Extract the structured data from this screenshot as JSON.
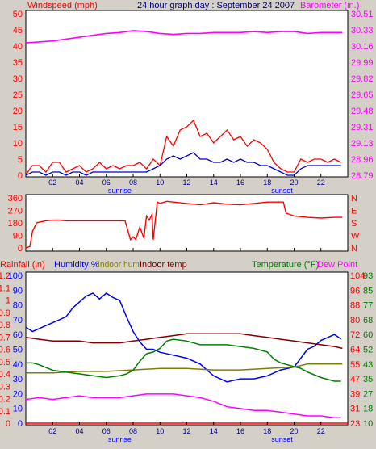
{
  "header": {
    "left_title": "Windspeed (mph)",
    "center_title": "24 hour graph day : September 24 2007",
    "right_title": "Barometer (in.)"
  },
  "colors": {
    "background": "#d4d0c8",
    "plot_bg": "#ffffff",
    "wind_gust": "#ff0000",
    "wind_avg": "#0000cc",
    "barometer": "#ff00ff",
    "direction": "#ff0000",
    "humidity": "#0000ff",
    "indoor_hum": "#808000",
    "indoor_temp": "#800000",
    "temperature": "#008000",
    "dew_point": "#ff00ff",
    "rainfall": "#ff0000"
  },
  "x_axis": {
    "ticks": [
      "02",
      "04",
      "06",
      "08",
      "10",
      "12",
      "14",
      "16",
      "18",
      "20",
      "22"
    ],
    "sunrise_label": "sunrise",
    "sunset_label": "sunset",
    "sunrise_hour": 7.0,
    "sunset_hour": 19.1
  },
  "chart_data": [
    {
      "type": "line",
      "panel": "wind",
      "x_range": [
        0,
        24
      ],
      "left_axis": {
        "label": "Windspeed (mph)",
        "ylim": [
          0,
          50
        ],
        "ticks": [
          "0",
          "5",
          "10",
          "15",
          "20",
          "25",
          "30",
          "35",
          "40",
          "45",
          "50"
        ]
      },
      "right_axis": {
        "label": "Barometer (in.)",
        "ylim": [
          28.79,
          30.51
        ],
        "ticks": [
          "28.79",
          "28.96",
          "29.13",
          "29.31",
          "29.48",
          "29.65",
          "29.82",
          "29.99",
          "30.16",
          "30.33",
          "30.51"
        ]
      },
      "series": [
        {
          "name": "Windspeed (mph)",
          "axis": "left",
          "color": "#ff0000",
          "x": [
            0,
            0.3,
            0.5,
            1.0,
            1.5,
            2.0,
            2.5,
            3.0,
            3.5,
            4.0,
            4.5,
            5.0,
            5.5,
            6.0,
            6.5,
            7.0,
            7.5,
            8.0,
            8.5,
            9.0,
            9.5,
            10.0,
            10.5,
            11.0,
            11.5,
            12.0,
            12.5,
            13.0,
            13.5,
            14.0,
            14.5,
            15.0,
            15.5,
            16.0,
            16.5,
            17.0,
            17.5,
            18.0,
            18.5,
            19.0,
            19.5,
            20.0,
            20.5,
            21.0,
            21.5,
            22.0,
            22.5,
            23.0,
            23.5
          ],
          "y": [
            0,
            2,
            3,
            3,
            1,
            4,
            4,
            1,
            2,
            3,
            1,
            2,
            4,
            2,
            3,
            2,
            3,
            3,
            4,
            2,
            5,
            3,
            12,
            9,
            14,
            15,
            17,
            12,
            13,
            10,
            12,
            14,
            11,
            12,
            9,
            11,
            10,
            8,
            4,
            2,
            1,
            1,
            5,
            4,
            5,
            5,
            4,
            5,
            4
          ]
        },
        {
          "name": "Wind average",
          "axis": "left",
          "color": "#0000cc",
          "x": [
            0,
            0.5,
            1.0,
            1.5,
            2.0,
            2.5,
            3.0,
            3.5,
            4.0,
            4.5,
            5.0,
            5.5,
            6.0,
            6.5,
            7.0,
            7.5,
            8.0,
            8.5,
            9.0,
            9.5,
            10.0,
            10.5,
            11.0,
            11.5,
            12.0,
            12.5,
            13.0,
            13.5,
            14.0,
            14.5,
            15.0,
            15.5,
            16.0,
            16.5,
            17.0,
            17.5,
            18.0,
            18.5,
            19.0,
            19.5,
            20.0,
            20.5,
            21.0,
            21.5,
            22.0,
            22.5,
            23.0,
            23.5
          ],
          "y": [
            0,
            1,
            1,
            0,
            1,
            1,
            0,
            1,
            1,
            0,
            1,
            1,
            1,
            1,
            1,
            1,
            1,
            1,
            1,
            2,
            3,
            5,
            6,
            5,
            6,
            7,
            5,
            5,
            4,
            4,
            5,
            4,
            5,
            4,
            4,
            3,
            3,
            2,
            1,
            0,
            0,
            2,
            3,
            3,
            3,
            3,
            3,
            3
          ]
        },
        {
          "name": "Barometer (in.)",
          "axis": "right",
          "color": "#ff00ff",
          "x": [
            0,
            1,
            2,
            3,
            4,
            5,
            6,
            7,
            8,
            9,
            10,
            11,
            12,
            13,
            14,
            15,
            16,
            17,
            18,
            19,
            20,
            21,
            22,
            23,
            23.6
          ],
          "y": [
            30.2,
            30.21,
            30.22,
            30.24,
            30.26,
            30.28,
            30.3,
            30.31,
            30.33,
            30.32,
            30.3,
            30.29,
            30.3,
            30.3,
            30.31,
            30.31,
            30.31,
            30.32,
            30.31,
            30.32,
            30.32,
            30.3,
            30.31,
            30.31,
            30.31
          ]
        }
      ]
    },
    {
      "type": "line",
      "panel": "direction",
      "x_range": [
        0,
        24
      ],
      "left_axis": {
        "ylim": [
          0,
          360
        ],
        "ticks": [
          "0",
          "90",
          "180",
          "270",
          "360"
        ]
      },
      "right_axis": {
        "ticks": [
          "N",
          "W",
          "S",
          "E",
          "N"
        ]
      },
      "series": [
        {
          "name": "Wind direction",
          "color": "#ff0000",
          "x": [
            0,
            0.3,
            0.5,
            0.8,
            1.0,
            1.5,
            2.0,
            2.5,
            3.0,
            3.5,
            4.0,
            5.0,
            6.0,
            7.0,
            7.4,
            7.8,
            8.0,
            8.2,
            8.5,
            8.8,
            9.0,
            9.2,
            9.4,
            9.5,
            9.8,
            10.0,
            10.5,
            11.0,
            12.0,
            13.0,
            14.0,
            15.0,
            16.0,
            17.0,
            18.0,
            19.0,
            19.2,
            19.4,
            20.0,
            21.0,
            22.0,
            23.0,
            23.6
          ],
          "y": [
            0,
            10,
            120,
            180,
            185,
            195,
            200,
            200,
            195,
            195,
            195,
            195,
            195,
            195,
            195,
            60,
            80,
            60,
            150,
            70,
            230,
            200,
            240,
            60,
            330,
            320,
            335,
            330,
            320,
            310,
            325,
            315,
            310,
            320,
            330,
            330,
            330,
            250,
            230,
            220,
            215,
            220,
            220
          ]
        }
      ]
    },
    {
      "type": "line",
      "panel": "climate",
      "x_range": [
        0,
        24
      ],
      "left_axes": [
        {
          "label": "Rainfall (in)",
          "ticks": [
            "0",
            "0.1",
            "0.2",
            "0.3",
            "0.4",
            "0.5",
            "0.6",
            "0.7",
            "0.8",
            "0.9",
            "1",
            "1.1",
            "1.2"
          ]
        },
        {
          "label": "Humidity %",
          "ticks": [
            "0",
            "10",
            "20",
            "30",
            "40",
            "50",
            "60",
            "70",
            "80",
            "90",
            "100"
          ]
        }
      ],
      "legend_labels": [
        "Indoor hum",
        "Indoor temp"
      ],
      "right_axes": [
        {
          "label": "Temperature (°F)",
          "ticks": [
            "23",
            "31",
            "39",
            "47",
            "55",
            "64",
            "72",
            "80",
            "88",
            "96",
            "104"
          ]
        },
        {
          "label": "Dew Point",
          "ticks": [
            "10",
            "18",
            "27",
            "35",
            "43",
            "52",
            "60",
            "68",
            "77",
            "85",
            "93"
          ]
        }
      ],
      "series": [
        {
          "name": "Rainfall (in)",
          "color": "#ff0000",
          "x": [
            0,
            24
          ],
          "y": [
            0,
            0
          ]
        },
        {
          "name": "Humidity %",
          "color": "#0000ff",
          "x": [
            0,
            0.5,
            1.0,
            1.5,
            2.0,
            2.5,
            3.0,
            3.5,
            4.0,
            4.5,
            5.0,
            5.5,
            6.0,
            6.5,
            7.0,
            7.5,
            8.0,
            8.5,
            9.0,
            9.5,
            10.0,
            11.0,
            12.0,
            13.0,
            14.0,
            15.0,
            16.0,
            17.0,
            18.0,
            19.0,
            20.0,
            20.5,
            21.0,
            21.5,
            22.0,
            22.5,
            23.0,
            23.5
          ],
          "y": [
            65,
            62,
            64,
            66,
            68,
            70,
            72,
            78,
            82,
            86,
            88,
            84,
            88,
            85,
            83,
            72,
            62,
            55,
            50,
            50,
            48,
            46,
            44,
            40,
            32,
            28,
            30,
            30,
            32,
            36,
            38,
            44,
            50,
            52,
            56,
            58,
            60,
            57
          ]
        },
        {
          "name": "Indoor hum",
          "color": "#808000",
          "x": [
            0,
            2,
            4,
            6,
            8,
            10,
            12,
            14,
            16,
            18,
            20,
            21,
            22,
            23,
            23.6
          ],
          "y": [
            34,
            34,
            35,
            35,
            36,
            37,
            37,
            36,
            36,
            37,
            38,
            40,
            40,
            40,
            40
          ]
        },
        {
          "name": "Indoor temp",
          "color": "#800000",
          "x": [
            0,
            1,
            2,
            3,
            4,
            5,
            6,
            7,
            8,
            9,
            10,
            11,
            12,
            13,
            14,
            15,
            16,
            17,
            18,
            19,
            20,
            21,
            22,
            23,
            23.6
          ],
          "y": [
            70,
            69,
            68,
            68,
            68,
            67,
            67,
            67,
            68,
            69,
            70,
            71,
            72,
            72,
            72,
            72,
            72,
            71,
            70,
            69,
            68,
            67,
            66,
            65,
            64
          ]
        },
        {
          "name": "Temperature (°F)",
          "color": "#008000",
          "x": [
            0,
            0.5,
            1.0,
            2.0,
            3.0,
            4.0,
            5.0,
            6.0,
            7.0,
            7.5,
            8.0,
            8.5,
            9.0,
            9.5,
            10.0,
            10.5,
            11.0,
            12.0,
            13.0,
            14.0,
            15.0,
            16.0,
            17.0,
            17.5,
            18.0,
            18.5,
            19.0,
            19.5,
            20.0,
            20.5,
            21.0,
            22.0,
            23.0,
            23.5
          ],
          "y": [
            56,
            56,
            55,
            52,
            51,
            50,
            49,
            48,
            49,
            50,
            52,
            57,
            61,
            62,
            64,
            68,
            69,
            68,
            66,
            66,
            66,
            65,
            64,
            63,
            62,
            58,
            56,
            55,
            54,
            53,
            51,
            48,
            46,
            46
          ]
        },
        {
          "name": "Dew Point",
          "color": "#ff00ff",
          "x": [
            0,
            1,
            2,
            3,
            4,
            5,
            6,
            7,
            8,
            9,
            10,
            11,
            12,
            13,
            14,
            15,
            16,
            17,
            18,
            19,
            20,
            21,
            22,
            23,
            23.5
          ],
          "y": [
            36,
            37,
            36,
            37,
            38,
            37,
            37,
            37,
            38,
            39,
            39,
            39,
            38,
            37,
            35,
            32,
            31,
            30,
            30,
            29,
            28,
            27,
            27,
            26,
            26
          ]
        }
      ]
    }
  ]
}
